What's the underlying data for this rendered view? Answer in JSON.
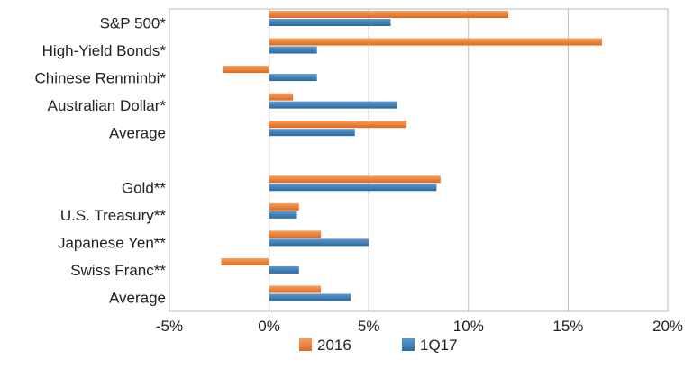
{
  "chart_data": {
    "type": "bar",
    "orientation": "horizontal",
    "categories": [
      "S&P 500*",
      "High-Yield Bonds*",
      "Chinese Renminbi*",
      "Australian Dollar*",
      "Average",
      "",
      "Gold**",
      "U.S. Treasury**",
      "Japanese Yen**",
      "Swiss Franc**",
      "Average"
    ],
    "series": [
      {
        "name": "2016",
        "color": "#ea7a2e",
        "values": [
          12.0,
          16.7,
          -2.3,
          1.2,
          6.9,
          null,
          8.6,
          1.5,
          2.6,
          -2.4,
          2.6
        ]
      },
      {
        "name": "1Q17",
        "color": "#3a7bb0",
        "values": [
          6.1,
          2.4,
          2.4,
          6.4,
          4.3,
          null,
          8.4,
          1.4,
          5.0,
          1.5,
          4.1
        ]
      }
    ],
    "x_ticks": [
      "-5%",
      "0%",
      "5%",
      "10%",
      "15%",
      "20%"
    ],
    "xlim": [
      -5,
      20
    ],
    "grid": "vertical",
    "legend": "bottom"
  }
}
